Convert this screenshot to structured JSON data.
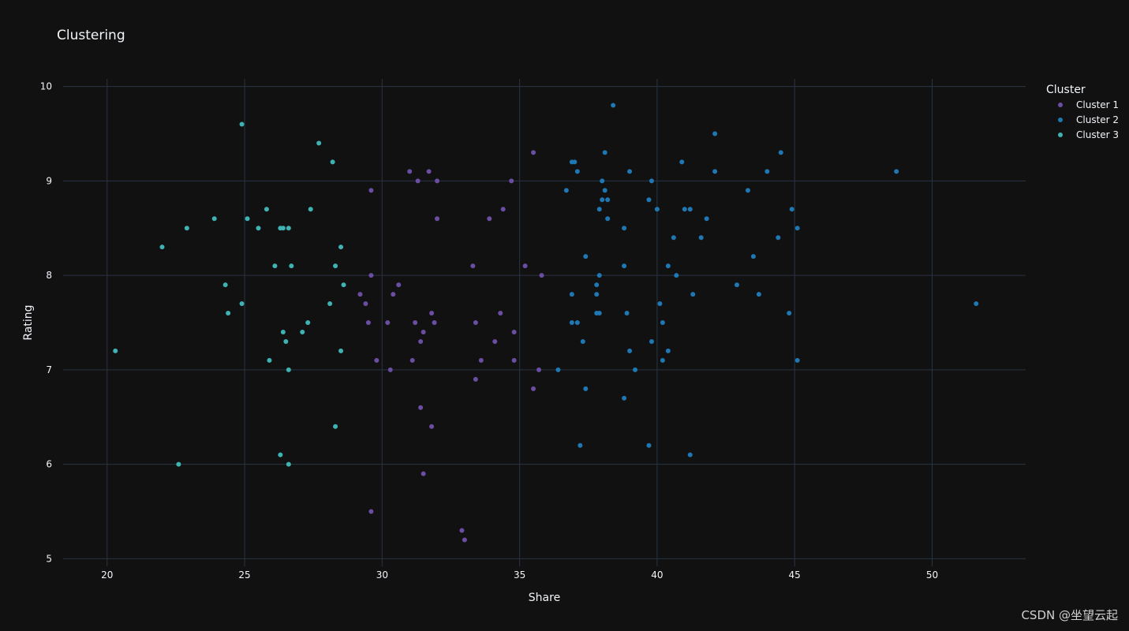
{
  "chart_data": {
    "type": "scatter",
    "title": "Clustering",
    "xlabel": "Share",
    "ylabel": "Rating",
    "xlim": [
      18.4,
      53.4
    ],
    "ylim": [
      4.92,
      10.08
    ],
    "xticks": [
      20,
      25,
      30,
      35,
      40,
      45,
      50
    ],
    "yticks": [
      5,
      6,
      7,
      8,
      9,
      10
    ],
    "grid": true,
    "legend": {
      "title": "Cluster",
      "position": "top-right"
    },
    "series": [
      {
        "name": "Cluster 1",
        "color": "#6b4ea3",
        "points": [
          [
            29.6,
            8.9
          ],
          [
            31.0,
            9.1
          ],
          [
            31.3,
            9.0
          ],
          [
            31.7,
            9.1
          ],
          [
            32.0,
            9.0
          ],
          [
            32.0,
            8.6
          ],
          [
            35.5,
            9.3
          ],
          [
            34.7,
            9.0
          ],
          [
            34.4,
            8.7
          ],
          [
            33.9,
            8.6
          ],
          [
            33.3,
            8.1
          ],
          [
            35.2,
            8.1
          ],
          [
            35.8,
            8.0
          ],
          [
            29.6,
            8.0
          ],
          [
            30.6,
            7.9
          ],
          [
            29.2,
            7.8
          ],
          [
            30.4,
            7.8
          ],
          [
            29.4,
            7.7
          ],
          [
            31.8,
            7.6
          ],
          [
            34.3,
            7.6
          ],
          [
            29.5,
            7.5
          ],
          [
            30.2,
            7.5
          ],
          [
            31.2,
            7.5
          ],
          [
            31.9,
            7.5
          ],
          [
            33.4,
            7.5
          ],
          [
            31.5,
            7.4
          ],
          [
            34.8,
            7.4
          ],
          [
            31.4,
            7.3
          ],
          [
            34.1,
            7.3
          ],
          [
            29.8,
            7.1
          ],
          [
            31.1,
            7.1
          ],
          [
            33.6,
            7.1
          ],
          [
            34.8,
            7.1
          ],
          [
            30.3,
            7.0
          ],
          [
            35.7,
            7.0
          ],
          [
            33.4,
            6.9
          ],
          [
            35.5,
            6.8
          ],
          [
            31.4,
            6.6
          ],
          [
            31.8,
            6.4
          ],
          [
            31.5,
            5.9
          ],
          [
            29.6,
            5.5
          ],
          [
            32.9,
            5.3
          ],
          [
            33.0,
            5.2
          ]
        ]
      },
      {
        "name": "Cluster 2",
        "color": "#1f77b4",
        "points": [
          [
            38.4,
            9.8
          ],
          [
            42.1,
            9.5
          ],
          [
            38.1,
            9.3
          ],
          [
            44.5,
            9.3
          ],
          [
            36.9,
            9.2
          ],
          [
            37.0,
            9.2
          ],
          [
            40.9,
            9.2
          ],
          [
            37.1,
            9.1
          ],
          [
            39.0,
            9.1
          ],
          [
            42.1,
            9.1
          ],
          [
            44.0,
            9.1
          ],
          [
            48.7,
            9.1
          ],
          [
            38.0,
            9.0
          ],
          [
            39.8,
            9.0
          ],
          [
            36.7,
            8.9
          ],
          [
            38.1,
            8.9
          ],
          [
            43.3,
            8.9
          ],
          [
            38.0,
            8.8
          ],
          [
            38.2,
            8.8
          ],
          [
            39.7,
            8.8
          ],
          [
            37.9,
            8.7
          ],
          [
            40.0,
            8.7
          ],
          [
            41.0,
            8.7
          ],
          [
            41.2,
            8.7
          ],
          [
            44.9,
            8.7
          ],
          [
            38.2,
            8.6
          ],
          [
            41.8,
            8.6
          ],
          [
            38.8,
            8.5
          ],
          [
            45.1,
            8.5
          ],
          [
            40.6,
            8.4
          ],
          [
            41.6,
            8.4
          ],
          [
            44.4,
            8.4
          ],
          [
            37.4,
            8.2
          ],
          [
            43.5,
            8.2
          ],
          [
            38.8,
            8.1
          ],
          [
            40.4,
            8.1
          ],
          [
            37.9,
            8.0
          ],
          [
            40.7,
            8.0
          ],
          [
            37.8,
            7.9
          ],
          [
            42.9,
            7.9
          ],
          [
            36.9,
            7.8
          ],
          [
            37.8,
            7.8
          ],
          [
            41.3,
            7.8
          ],
          [
            43.7,
            7.8
          ],
          [
            40.1,
            7.7
          ],
          [
            51.6,
            7.7
          ],
          [
            37.8,
            7.6
          ],
          [
            37.9,
            7.6
          ],
          [
            38.9,
            7.6
          ],
          [
            44.8,
            7.6
          ],
          [
            36.9,
            7.5
          ],
          [
            37.1,
            7.5
          ],
          [
            40.2,
            7.5
          ],
          [
            37.3,
            7.3
          ],
          [
            39.8,
            7.3
          ],
          [
            39.0,
            7.2
          ],
          [
            40.4,
            7.2
          ],
          [
            40.2,
            7.1
          ],
          [
            45.1,
            7.1
          ],
          [
            36.4,
            7.0
          ],
          [
            39.2,
            7.0
          ],
          [
            37.4,
            6.8
          ],
          [
            38.8,
            6.7
          ],
          [
            37.2,
            6.2
          ],
          [
            39.7,
            6.2
          ],
          [
            41.2,
            6.1
          ]
        ]
      },
      {
        "name": "Cluster 3",
        "color": "#3fb3b3",
        "points": [
          [
            24.9,
            9.6
          ],
          [
            27.7,
            9.4
          ],
          [
            28.2,
            9.2
          ],
          [
            25.8,
            8.7
          ],
          [
            27.4,
            8.7
          ],
          [
            23.9,
            8.6
          ],
          [
            25.1,
            8.6
          ],
          [
            22.9,
            8.5
          ],
          [
            25.5,
            8.5
          ],
          [
            26.3,
            8.5
          ],
          [
            26.4,
            8.5
          ],
          [
            26.6,
            8.5
          ],
          [
            22.0,
            8.3
          ],
          [
            28.5,
            8.3
          ],
          [
            26.1,
            8.1
          ],
          [
            26.7,
            8.1
          ],
          [
            28.3,
            8.1
          ],
          [
            24.3,
            7.9
          ],
          [
            28.6,
            7.9
          ],
          [
            24.9,
            7.7
          ],
          [
            28.1,
            7.7
          ],
          [
            24.4,
            7.6
          ],
          [
            27.3,
            7.5
          ],
          [
            26.4,
            7.4
          ],
          [
            27.1,
            7.4
          ],
          [
            26.5,
            7.3
          ],
          [
            20.3,
            7.2
          ],
          [
            28.5,
            7.2
          ],
          [
            25.9,
            7.1
          ],
          [
            26.6,
            7.0
          ],
          [
            28.3,
            6.4
          ],
          [
            26.3,
            6.1
          ],
          [
            22.6,
            6.0
          ],
          [
            26.6,
            6.0
          ]
        ]
      }
    ]
  },
  "watermark": "CSDN @坐望云起"
}
